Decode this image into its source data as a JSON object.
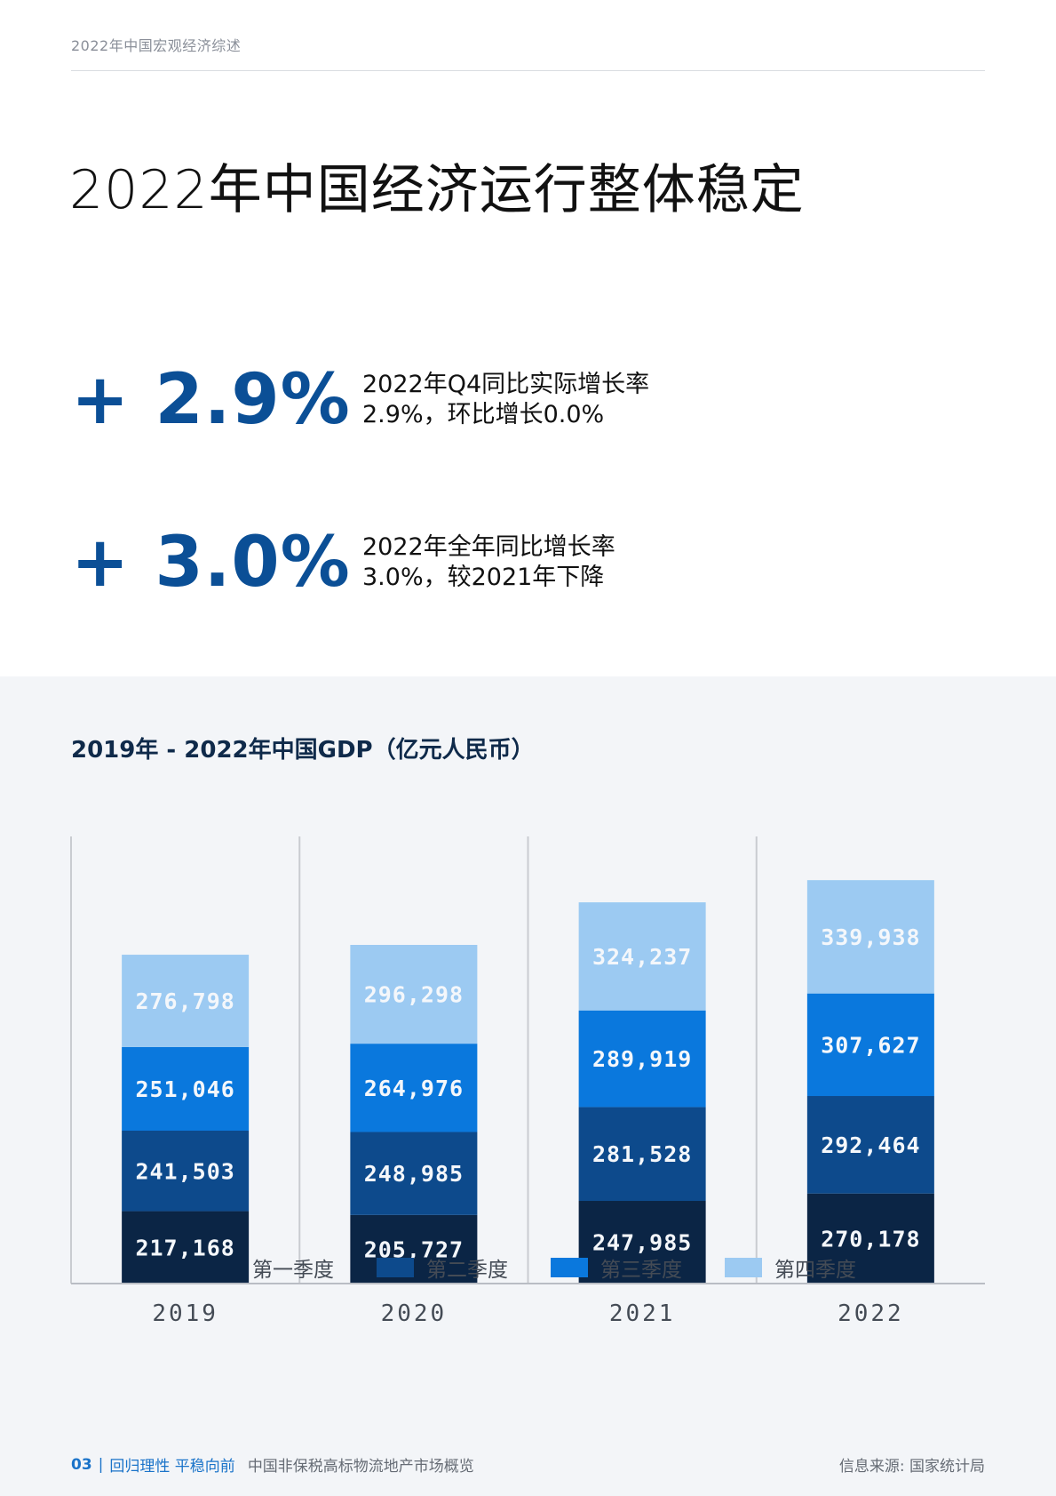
{
  "header": {
    "running_title": "2022年中国宏观经济综述"
  },
  "page_title": "2022年中国经济运行整体稳定",
  "stats": [
    {
      "value": "+ 2.9%",
      "line1": "2022年Q4同比实际增长率",
      "line2": "2.9%，环比增长0.0%"
    },
    {
      "value": "+ 3.0%",
      "line1": "2022年全年同比增长率",
      "line2": "3.0%，较2021年下降"
    }
  ],
  "colors": {
    "q1": "#0b2545",
    "q2": "#0d4a8c",
    "q3": "#0a78dd",
    "q4": "#9ccaf2",
    "accent": "#0b4f96",
    "panel": "#f3f5f8"
  },
  "chart_data": {
    "type": "bar",
    "stacked": true,
    "title": "2019年 - 2022年中国GDP（亿元人民币）",
    "categories": [
      "2019",
      "2020",
      "2021",
      "2022"
    ],
    "series": [
      {
        "name": "第一季度",
        "values": [
          217168,
          205727,
          247985,
          270178
        ],
        "labels": [
          "217,168",
          "205,727",
          "247,985",
          "270,178"
        ]
      },
      {
        "name": "第二季度",
        "values": [
          241503,
          248985,
          281528,
          292464
        ],
        "labels": [
          "241,503",
          "248,985",
          "281,528",
          "292,464"
        ]
      },
      {
        "name": "第三季度",
        "values": [
          251046,
          264976,
          289919,
          307627
        ],
        "labels": [
          "251,046",
          "264,976",
          "289,919",
          "307,627"
        ]
      },
      {
        "name": "第四季度",
        "values": [
          276798,
          296298,
          324237,
          339938
        ],
        "labels": [
          "276,798",
          "296,298",
          "324,237",
          "339,938"
        ]
      }
    ],
    "grid": false,
    "legend_position": "bottom"
  },
  "footer": {
    "page_number": "03",
    "separator": "|",
    "slogan": "回归理性 平稳向前",
    "document": "中国非保税高标物流地产市场概览",
    "source": "信息来源: 国家统计局"
  }
}
